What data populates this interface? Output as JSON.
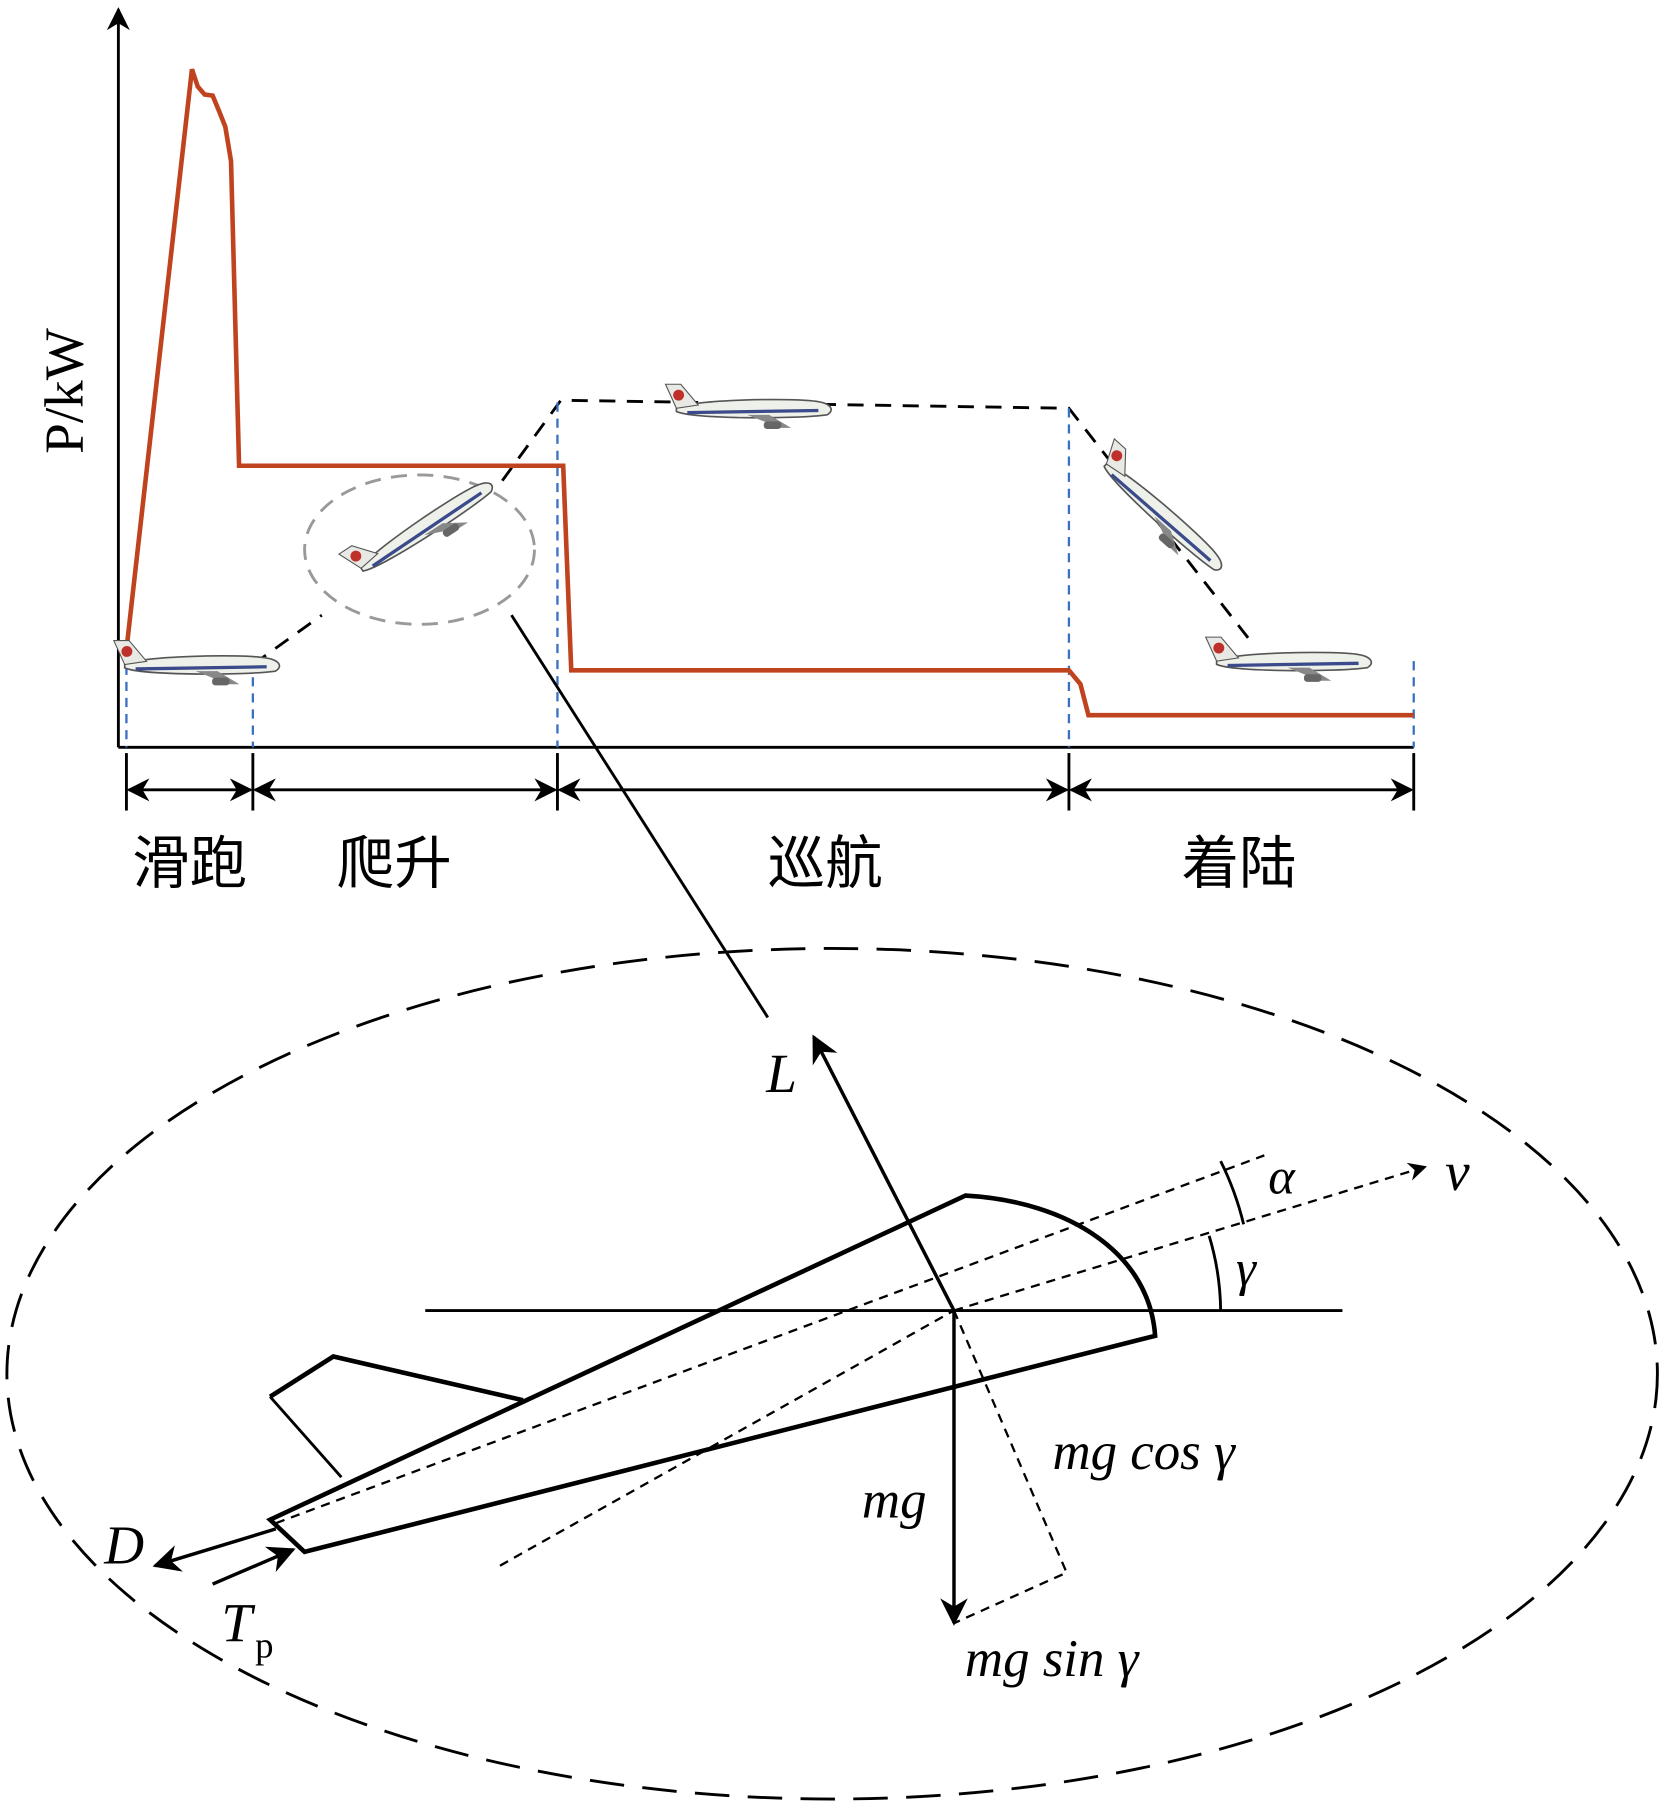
{
  "axis": {
    "y_label": "P/kW"
  },
  "phases": [
    "滑跑",
    "爬升",
    "巡航",
    "着陆"
  ],
  "forces": {
    "lift": "L",
    "velocity": "v",
    "angle_of_attack": "α",
    "flight_path_angle": "γ",
    "weight": "mg",
    "weight_normal": "mg cos γ",
    "weight_tangent": "mg sin γ",
    "drag": "D",
    "thrust": {
      "symbol": "T",
      "subscript": "p"
    }
  }
}
